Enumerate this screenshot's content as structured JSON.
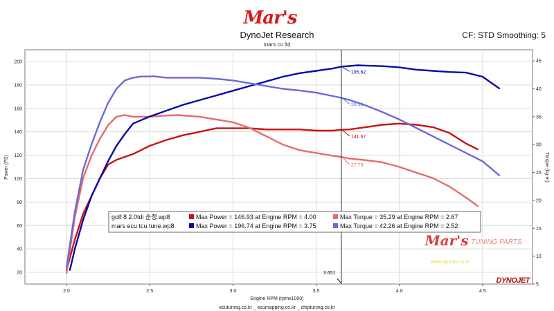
{
  "header": {
    "logo_text": "Mar's",
    "title": "DynoJet Research",
    "subtitle": "mars co ltd",
    "right_info": "CF: STD Smoothing: 5"
  },
  "footer": {
    "websites": "ecutuning.co.kr _ ecumapping.co.kr _ chiptuning.co.kr"
  },
  "branding": {
    "watermark_logo": "Mar's",
    "watermark_tag": "TUNING PARTS",
    "watermark_url": "www.dyno4u.co.kr",
    "dynojet_logo": "DYNOJET"
  },
  "chart_data": {
    "type": "line",
    "xlabel": "Engine RPM (rpmx1000)",
    "ylabel_left": "Power (PS)",
    "ylabel_right": "Torque (kg-m)",
    "xlim": [
      1.75,
      4.8
    ],
    "ylim_left": [
      10,
      210
    ],
    "ylim_right": [
      5,
      47
    ],
    "x_ticks": [
      2.0,
      2.5,
      3.0,
      3.5,
      4.0,
      4.5
    ],
    "x_tick_labels": [
      "2.0",
      "2.5",
      "3.0",
      "3.5",
      "4.0",
      "4.5"
    ],
    "y_left_ticks": [
      20,
      40,
      60,
      80,
      100,
      120,
      140,
      160,
      180,
      200
    ],
    "y_right_ticks": [
      5,
      10,
      15,
      20,
      25,
      30,
      35,
      40,
      45
    ],
    "cursor": {
      "x": 3.651,
      "x_label": "3.651",
      "readouts": [
        {
          "text": "195.62",
          "series": "mars_power",
          "value": 195.62
        },
        {
          "text": "38.38",
          "series": "mars_torque",
          "value": 38.38
        },
        {
          "text": "141.67",
          "series": "golf_power",
          "value": 141.67
        },
        {
          "text": "27.79",
          "series": "golf_torque",
          "value": 27.79
        }
      ]
    },
    "series": [
      {
        "id": "golf_power",
        "axis": "left",
        "color": "#cc1111",
        "x": [
          2.0,
          2.05,
          2.1,
          2.15,
          2.2,
          2.25,
          2.3,
          2.4,
          2.5,
          2.6,
          2.7,
          2.8,
          2.9,
          3.0,
          3.1,
          3.2,
          3.3,
          3.4,
          3.5,
          3.6,
          3.65,
          3.7,
          3.8,
          3.9,
          4.0,
          4.1,
          4.2,
          4.3,
          4.4,
          4.47
        ],
        "values": [
          22,
          48,
          70,
          85,
          100,
          112,
          116,
          121,
          128,
          133,
          137,
          140,
          143,
          143,
          143,
          142,
          142,
          142,
          141,
          141,
          141.67,
          142,
          144,
          146,
          147,
          146,
          144,
          139,
          130,
          125
        ]
      },
      {
        "id": "golf_torque",
        "axis": "right",
        "color": "#e86a6a",
        "x": [
          2.0,
          2.05,
          2.1,
          2.15,
          2.2,
          2.25,
          2.3,
          2.35,
          2.4,
          2.5,
          2.6,
          2.67,
          2.8,
          2.9,
          3.0,
          3.1,
          3.2,
          3.3,
          3.4,
          3.5,
          3.6,
          3.65,
          3.7,
          3.8,
          3.9,
          4.0,
          4.1,
          4.2,
          4.3,
          4.4,
          4.47
        ],
        "values": [
          7,
          17,
          24,
          28,
          31,
          33.5,
          35,
          35.3,
          35,
          35,
          35.2,
          35.29,
          35,
          34.5,
          34,
          33,
          31.5,
          30,
          29,
          28.5,
          28,
          27.79,
          27.5,
          27.2,
          26.8,
          26,
          25,
          24,
          22.5,
          20.5,
          19
        ]
      },
      {
        "id": "mars_power",
        "axis": "left",
        "color": "#0a0aa8",
        "x": [
          2.02,
          2.05,
          2.1,
          2.15,
          2.2,
          2.25,
          2.3,
          2.35,
          2.4,
          2.5,
          2.6,
          2.7,
          2.8,
          2.9,
          3.0,
          3.1,
          3.2,
          3.3,
          3.4,
          3.5,
          3.6,
          3.651,
          3.75,
          3.8,
          3.9,
          4.0,
          4.1,
          4.2,
          4.3,
          4.4,
          4.5,
          4.6
        ],
        "values": [
          22,
          40,
          65,
          85,
          100,
          115,
          128,
          138,
          147,
          153,
          158,
          163,
          167,
          171,
          175,
          179,
          183,
          187,
          190,
          192,
          194,
          195.62,
          196.74,
          196.5,
          196,
          195,
          193,
          192,
          191,
          190.5,
          187,
          177
        ]
      },
      {
        "id": "mars_torque",
        "axis": "right",
        "color": "#6a6ad9",
        "x": [
          2.0,
          2.05,
          2.1,
          2.15,
          2.2,
          2.25,
          2.3,
          2.35,
          2.4,
          2.45,
          2.5,
          2.52,
          2.6,
          2.7,
          2.8,
          2.9,
          3.0,
          3.1,
          3.2,
          3.3,
          3.4,
          3.5,
          3.6,
          3.651,
          3.7,
          3.8,
          3.9,
          4.0,
          4.1,
          4.2,
          4.3,
          4.4,
          4.5,
          4.6
        ],
        "values": [
          8,
          18,
          25.5,
          30,
          34,
          37.5,
          40,
          41.5,
          42,
          42.2,
          42.2,
          42.26,
          42,
          42,
          42,
          41.8,
          41.5,
          41,
          40.5,
          40,
          39.7,
          39.3,
          38.7,
          38.38,
          38,
          37,
          35.8,
          34.5,
          33,
          31.5,
          30,
          28.5,
          27,
          24.5
        ]
      }
    ],
    "legend": {
      "placement": "center-bottom",
      "rows": [
        {
          "run": "golf 8 2.0tdi 순정.wp8",
          "power_text": "Max Power = 146.93 at Engine RPM = 4.00",
          "torque_text": "Max Torque = 35.29 at Engine RPM = 2.67",
          "power_color": "#cc1111",
          "torque_color": "#e86a6a"
        },
        {
          "run": "mars ecu tcu tune.wp8",
          "power_text": "Max Power = 196.74 at Engine RPM = 3.75",
          "torque_text": "Max Torque = 42.26 at Engine RPM = 2.52",
          "power_color": "#0a0aa8",
          "torque_color": "#6a6ad9"
        }
      ]
    }
  }
}
